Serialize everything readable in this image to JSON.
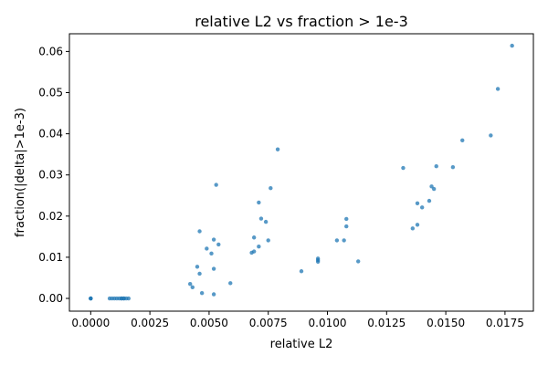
{
  "chart_data": {
    "type": "scatter",
    "title": "relative L2 vs fraction > 1e-3",
    "xlabel": "relative L2",
    "ylabel": "fraction(|delta|>1e-3)",
    "xlim": [
      -0.0009,
      0.0187
    ],
    "ylim": [
      -0.0031,
      0.0643
    ],
    "x_ticks": [
      0.0,
      0.0025,
      0.005,
      0.0075,
      0.01,
      0.0125,
      0.015,
      0.0175
    ],
    "x_tick_labels": [
      "0.0000",
      "0.0025",
      "0.0050",
      "0.0075",
      "0.0100",
      "0.0125",
      "0.0150",
      "0.0175"
    ],
    "y_ticks": [
      0.0,
      0.01,
      0.02,
      0.03,
      0.04,
      0.05,
      0.06
    ],
    "y_tick_labels": [
      "0.00",
      "0.01",
      "0.02",
      "0.03",
      "0.04",
      "0.05",
      "0.06"
    ],
    "grid": false,
    "legend": "none",
    "marker_color": "#1f77b4",
    "series": [
      {
        "points": [
          [
            0.0,
            0.0
          ],
          [
            0.0,
            0.0
          ],
          [
            0.0,
            0.0
          ],
          [
            0.0008,
            0.0
          ],
          [
            0.0009,
            0.0
          ],
          [
            0.001,
            0.0
          ],
          [
            0.0011,
            0.0
          ],
          [
            0.0012,
            0.0
          ],
          [
            0.0013,
            0.0
          ],
          [
            0.0013,
            0.0
          ],
          [
            0.0014,
            0.0
          ],
          [
            0.0014,
            0.0
          ],
          [
            0.0015,
            0.0
          ],
          [
            0.0016,
            0.0
          ],
          [
            0.0042,
            0.0035
          ],
          [
            0.0043,
            0.0027
          ],
          [
            0.0045,
            0.0077
          ],
          [
            0.0046,
            0.006
          ],
          [
            0.0046,
            0.0163
          ],
          [
            0.0047,
            0.0013
          ],
          [
            0.0049,
            0.0121
          ],
          [
            0.0051,
            0.0109
          ],
          [
            0.0052,
            0.0143
          ],
          [
            0.0052,
            0.0072
          ],
          [
            0.0052,
            0.001
          ],
          [
            0.0053,
            0.0276
          ],
          [
            0.0054,
            0.0131
          ],
          [
            0.0059,
            0.0037
          ],
          [
            0.0068,
            0.0111
          ],
          [
            0.0069,
            0.0114
          ],
          [
            0.0069,
            0.0148
          ],
          [
            0.0071,
            0.0126
          ],
          [
            0.0071,
            0.0233
          ],
          [
            0.0072,
            0.0194
          ],
          [
            0.0074,
            0.0186
          ],
          [
            0.0075,
            0.0141
          ],
          [
            0.0076,
            0.0268
          ],
          [
            0.0079,
            0.0362
          ],
          [
            0.0089,
            0.0066
          ],
          [
            0.0096,
            0.0089
          ],
          [
            0.0096,
            0.0093
          ],
          [
            0.0096,
            0.0097
          ],
          [
            0.0104,
            0.0141
          ],
          [
            0.0107,
            0.0141
          ],
          [
            0.0108,
            0.0193
          ],
          [
            0.0108,
            0.0175
          ],
          [
            0.0113,
            0.009
          ],
          [
            0.0132,
            0.0317
          ],
          [
            0.0136,
            0.017
          ],
          [
            0.0138,
            0.0231
          ],
          [
            0.0138,
            0.0179
          ],
          [
            0.014,
            0.0221
          ],
          [
            0.0143,
            0.0237
          ],
          [
            0.0144,
            0.0272
          ],
          [
            0.0145,
            0.0266
          ],
          [
            0.0146,
            0.0321
          ],
          [
            0.0153,
            0.0319
          ],
          [
            0.0157,
            0.0384
          ],
          [
            0.0169,
            0.0396
          ],
          [
            0.0172,
            0.0509
          ],
          [
            0.0178,
            0.0614
          ]
        ]
      }
    ]
  }
}
